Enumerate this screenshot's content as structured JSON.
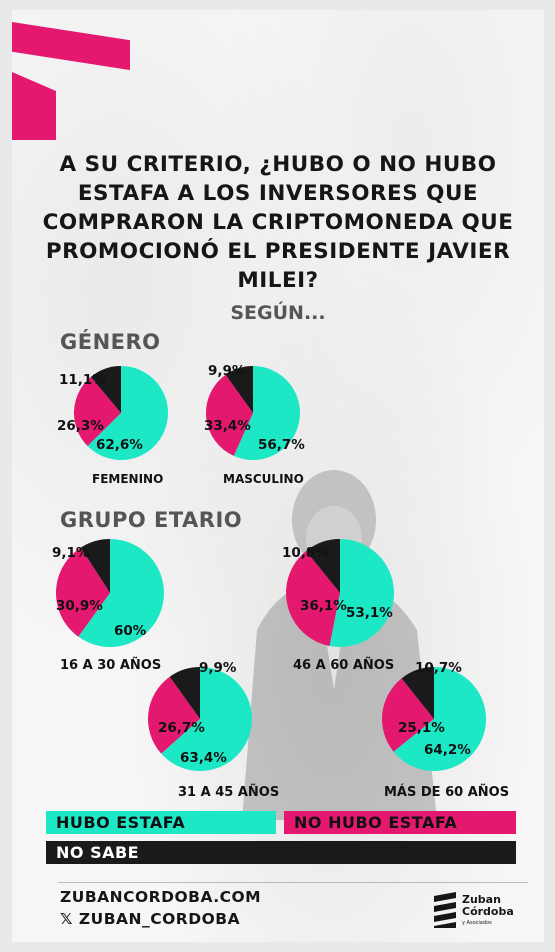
{
  "title": "A SU CRITERIO, ¿HUBO O NO HUBO ESTAFA A LOS INVERSORES QUE COMPRARON LA CRIPTOMONEDA QUE PROMOCIONÓ EL PRESIDENTE JAVIER MILEI?",
  "subtitle": "SEGÚN...",
  "colors": {
    "hubo": "#1de8c6",
    "no_hubo": "#e4186f",
    "no_sabe": "#1a1a1a",
    "accent": "#e4186f"
  },
  "chart_data": [
    {
      "type": "pie",
      "group": "GÉNERO",
      "category": "FEMENINO",
      "series": [
        "HUBO ESTAFA",
        "NO HUBO ESTAFA",
        "NO SABE"
      ],
      "values": [
        62.6,
        26.3,
        11.1
      ],
      "labels": [
        "62,6%",
        "26,3%",
        "11,1%"
      ]
    },
    {
      "type": "pie",
      "group": "GÉNERO",
      "category": "MASCULINO",
      "series": [
        "HUBO ESTAFA",
        "NO HUBO ESTAFA",
        "NO SABE"
      ],
      "values": [
        56.7,
        33.4,
        9.9
      ],
      "labels": [
        "56,7%",
        "33,4%",
        "9,9%"
      ]
    },
    {
      "type": "pie",
      "group": "GRUPO ETARIO",
      "category": "16 A 30 AÑOS",
      "series": [
        "HUBO ESTAFA",
        "NO HUBO ESTAFA",
        "NO SABE"
      ],
      "values": [
        60,
        30.9,
        9.1
      ],
      "labels": [
        "60%",
        "30,9%",
        "9,1%"
      ]
    },
    {
      "type": "pie",
      "group": "GRUPO ETARIO",
      "category": "46 A 60 AÑOS",
      "series": [
        "HUBO ESTAFA",
        "NO HUBO ESTAFA",
        "NO SABE"
      ],
      "values": [
        53.1,
        36.1,
        10.8
      ],
      "labels": [
        "53,1%",
        "36,1%",
        "10,8%"
      ]
    },
    {
      "type": "pie",
      "group": "GRUPO ETARIO",
      "category": "31 A 45 AÑOS",
      "series": [
        "HUBO ESTAFA",
        "NO HUBO ESTAFA",
        "NO SABE"
      ],
      "values": [
        63.4,
        26.7,
        9.9
      ],
      "labels": [
        "63,4%",
        "26,7%",
        "9,9%"
      ]
    },
    {
      "type": "pie",
      "group": "GRUPO ETARIO",
      "category": "MÁS DE 60 AÑOS",
      "series": [
        "HUBO ESTAFA",
        "NO HUBO ESTAFA",
        "NO SABE"
      ],
      "values": [
        64.2,
        25.1,
        10.7
      ],
      "labels": [
        "64,2%",
        "25,1%",
        "10,7%"
      ]
    }
  ],
  "sections": {
    "gender": "GÉNERO",
    "age": "GRUPO ETARIO"
  },
  "legend": {
    "hubo": "HUBO ESTAFA",
    "no_hubo": "NO HUBO ESTAFA",
    "no_sabe": "NO SABE"
  },
  "footer": {
    "website": "ZUBANCORDOBA.COM",
    "handle": "𝕏 ZUBAN_CORDOBA",
    "logo_name": "Zuban\nCórdoba",
    "logo_sub": "y Asociados"
  }
}
